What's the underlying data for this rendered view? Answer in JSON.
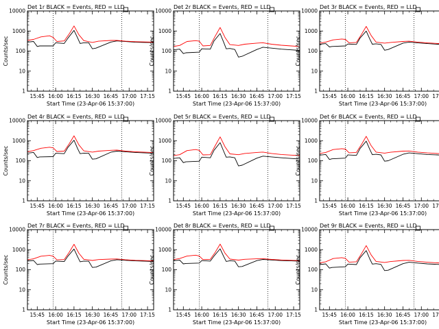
{
  "colors": {
    "events": "#000000",
    "lld": "#ff0000",
    "background": "#ffffff"
  },
  "common": {
    "x_ticks": [
      "15:45",
      "16:00",
      "16:15",
      "16:30",
      "16:45",
      "17:00",
      "17:15"
    ],
    "x_tick_minutes": [
      0,
      15,
      30,
      45,
      60,
      75,
      90
    ],
    "x_range_minutes": [
      -8,
      95
    ],
    "xlabel": "Start Time (23-Apr-06 15:37:00)",
    "ylabel": "Counts/sec",
    "y_scale": "log",
    "ylim": [
      1,
      10000
    ],
    "y_ticks": [
      "1",
      "10",
      "100",
      "1000",
      "10000"
    ],
    "y_tick_values": [
      1,
      10,
      100,
      1000,
      10000
    ],
    "vlines_minutes": [
      13,
      69
    ]
  },
  "chart_data": [
    {
      "type": "line",
      "title": "Det 1r BLACK = Events, RED = LLD",
      "series": [
        {
          "name": "Events",
          "x": [
            -8,
            -3,
            0,
            2,
            13,
            15,
            22,
            25,
            30,
            33,
            35,
            38,
            42,
            45,
            48,
            60,
            65,
            72,
            80,
            88,
            95
          ],
          "y": [
            280,
            300,
            170,
            180,
            180,
            260,
            240,
            440,
            1080,
            450,
            240,
            260,
            260,
            130,
            140,
            280,
            320,
            300,
            275,
            270,
            265
          ]
        },
        {
          "name": "LLD",
          "x": [
            -8,
            -3,
            3,
            10,
            13,
            16,
            22,
            26,
            30,
            34,
            38,
            45,
            50,
            60,
            65,
            72,
            80,
            88,
            95
          ],
          "y": [
            340,
            380,
            510,
            580,
            480,
            300,
            320,
            700,
            1800,
            650,
            330,
            270,
            310,
            340,
            340,
            310,
            295,
            285,
            280
          ]
        }
      ]
    },
    {
      "type": "line",
      "title": "Det 2r BLACK = Events, RED = LLD",
      "series": [
        {
          "name": "Events",
          "x": [
            -8,
            -3,
            0,
            2,
            13,
            15,
            22,
            25,
            30,
            33,
            35,
            38,
            42,
            45,
            48,
            60,
            65,
            72,
            80,
            88,
            95
          ],
          "y": [
            115,
            125,
            75,
            82,
            88,
            130,
            125,
            320,
            750,
            270,
            130,
            135,
            120,
            50,
            55,
            120,
            155,
            140,
            125,
            115,
            108
          ]
        },
        {
          "name": "LLD",
          "x": [
            -8,
            -3,
            3,
            10,
            13,
            16,
            22,
            26,
            30,
            34,
            38,
            45,
            50,
            60,
            65,
            72,
            80,
            88,
            95
          ],
          "y": [
            170,
            190,
            300,
            330,
            310,
            180,
            190,
            550,
            1500,
            480,
            210,
            190,
            220,
            250,
            260,
            220,
            195,
            180,
            170
          ]
        }
      ]
    },
    {
      "type": "line",
      "title": "Det 3r BLACK = Events, RED = LLD",
      "series": [
        {
          "name": "Events",
          "x": [
            -8,
            -3,
            0,
            2,
            13,
            15,
            22,
            25,
            30,
            33,
            35,
            38,
            42,
            45,
            48,
            60,
            65,
            72,
            80,
            88,
            95
          ],
          "y": [
            220,
            235,
            160,
            170,
            180,
            225,
            215,
            450,
            1000,
            390,
            220,
            230,
            215,
            110,
            120,
            250,
            280,
            255,
            235,
            220,
            210
          ]
        },
        {
          "name": "LLD",
          "x": [
            -8,
            -3,
            3,
            10,
            13,
            16,
            22,
            26,
            30,
            34,
            38,
            45,
            50,
            60,
            65,
            72,
            80,
            88,
            95
          ],
          "y": [
            250,
            280,
            360,
            400,
            380,
            260,
            270,
            650,
            1700,
            600,
            280,
            250,
            270,
            300,
            310,
            280,
            255,
            240,
            230
          ]
        }
      ]
    },
    {
      "type": "line",
      "title": "Det 4r BLACK = Events, RED = LLD",
      "series": [
        {
          "name": "Events",
          "x": [
            -8,
            -3,
            0,
            2,
            13,
            15,
            22,
            25,
            30,
            33,
            35,
            38,
            42,
            45,
            48,
            60,
            65,
            72,
            80,
            88,
            95
          ],
          "y": [
            240,
            260,
            145,
            155,
            160,
            235,
            225,
            460,
            1050,
            400,
            225,
            240,
            235,
            120,
            125,
            265,
            300,
            280,
            260,
            245,
            235
          ]
        },
        {
          "name": "LLD",
          "x": [
            -8,
            -3,
            3,
            10,
            13,
            16,
            22,
            26,
            30,
            34,
            38,
            45,
            50,
            60,
            65,
            72,
            80,
            88,
            95
          ],
          "y": [
            280,
            320,
            420,
            470,
            440,
            290,
            300,
            680,
            1750,
            620,
            310,
            270,
            300,
            330,
            340,
            300,
            280,
            265,
            255
          ]
        }
      ]
    },
    {
      "type": "line",
      "title": "Det 5r BLACK = Events, RED = LLD",
      "series": [
        {
          "name": "Events",
          "x": [
            -8,
            -3,
            0,
            2,
            13,
            15,
            22,
            25,
            30,
            33,
            35,
            38,
            42,
            45,
            48,
            60,
            65,
            72,
            80,
            88,
            95
          ],
          "y": [
            130,
            140,
            80,
            88,
            95,
            150,
            140,
            330,
            800,
            290,
            150,
            155,
            140,
            55,
            60,
            135,
            170,
            155,
            140,
            130,
            122
          ]
        },
        {
          "name": "LLD",
          "x": [
            -8,
            -3,
            3,
            10,
            13,
            16,
            22,
            26,
            30,
            34,
            38,
            45,
            50,
            60,
            65,
            72,
            80,
            88,
            95
          ],
          "y": [
            180,
            200,
            320,
            360,
            330,
            195,
            200,
            560,
            1550,
            500,
            220,
            200,
            230,
            260,
            270,
            230,
            205,
            190,
            180
          ]
        }
      ]
    },
    {
      "type": "line",
      "title": "Det 6r BLACK = Events, RED = LLD",
      "series": [
        {
          "name": "Events",
          "x": [
            -8,
            -3,
            0,
            2,
            13,
            15,
            22,
            25,
            30,
            33,
            35,
            38,
            42,
            45,
            48,
            60,
            65,
            72,
            80,
            88,
            95
          ],
          "y": [
            190,
            205,
            115,
            125,
            135,
            195,
            185,
            410,
            950,
            360,
            200,
            210,
            195,
            95,
            100,
            210,
            245,
            225,
            205,
            195,
            185
          ]
        },
        {
          "name": "LLD",
          "x": [
            -8,
            -3,
            3,
            10,
            13,
            16,
            22,
            26,
            30,
            34,
            38,
            45,
            50,
            60,
            65,
            72,
            80,
            88,
            95
          ],
          "y": [
            230,
            260,
            360,
            400,
            380,
            250,
            260,
            620,
            1650,
            570,
            270,
            240,
            265,
            300,
            305,
            270,
            245,
            230,
            220
          ]
        }
      ]
    },
    {
      "type": "line",
      "title": "Det 7r BLACK = Events, RED = LLD",
      "series": [
        {
          "name": "Events",
          "x": [
            -8,
            -3,
            0,
            2,
            13,
            15,
            22,
            25,
            30,
            33,
            35,
            38,
            42,
            45,
            48,
            60,
            65,
            72,
            80,
            88,
            95
          ],
          "y": [
            270,
            290,
            180,
            190,
            200,
            270,
            255,
            470,
            1080,
            440,
            250,
            270,
            265,
            130,
            135,
            275,
            315,
            295,
            275,
            265,
            255
          ]
        },
        {
          "name": "LLD",
          "x": [
            -8,
            -3,
            3,
            10,
            13,
            16,
            22,
            26,
            30,
            34,
            38,
            45,
            50,
            60,
            65,
            72,
            80,
            88,
            95
          ],
          "y": [
            310,
            350,
            470,
            520,
            470,
            310,
            320,
            720,
            1850,
            660,
            330,
            290,
            320,
            340,
            345,
            315,
            295,
            285,
            275
          ]
        }
      ]
    },
    {
      "type": "line",
      "title": "Det 8r BLACK = Events, RED = LLD",
      "series": [
        {
          "name": "Events",
          "x": [
            -8,
            -3,
            0,
            2,
            13,
            15,
            22,
            25,
            30,
            33,
            35,
            38,
            42,
            45,
            48,
            60,
            65,
            72,
            80,
            88,
            95
          ],
          "y": [
            280,
            300,
            195,
            205,
            215,
            285,
            270,
            480,
            1100,
            450,
            260,
            280,
            270,
            140,
            145,
            285,
            325,
            305,
            285,
            275,
            265
          ]
        },
        {
          "name": "LLD",
          "x": [
            -8,
            -3,
            3,
            10,
            13,
            16,
            22,
            26,
            30,
            34,
            38,
            45,
            50,
            60,
            65,
            72,
            80,
            88,
            95
          ],
          "y": [
            320,
            360,
            480,
            530,
            480,
            320,
            330,
            730,
            1900,
            670,
            340,
            300,
            330,
            350,
            355,
            325,
            305,
            295,
            285
          ]
        }
      ]
    },
    {
      "type": "line",
      "title": "Det 9r BLACK = Events, RED = LLD",
      "series": [
        {
          "name": "Events",
          "x": [
            -8,
            -3,
            0,
            2,
            13,
            15,
            22,
            25,
            30,
            33,
            35,
            38,
            42,
            45,
            48,
            60,
            65,
            72,
            80,
            88,
            95
          ],
          "y": [
            180,
            195,
            120,
            130,
            140,
            190,
            180,
            400,
            900,
            340,
            190,
            200,
            185,
            90,
            95,
            200,
            235,
            215,
            195,
            185,
            178
          ]
        },
        {
          "name": "LLD",
          "x": [
            -8,
            -3,
            3,
            10,
            13,
            16,
            22,
            26,
            30,
            34,
            38,
            45,
            50,
            60,
            65,
            72,
            80,
            88,
            95
          ],
          "y": [
            220,
            250,
            360,
            400,
            370,
            240,
            250,
            600,
            1600,
            550,
            260,
            230,
            255,
            290,
            295,
            260,
            235,
            220,
            210
          ]
        }
      ]
    }
  ]
}
